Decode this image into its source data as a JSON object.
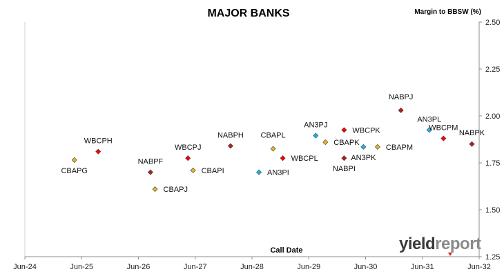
{
  "chart_data": {
    "type": "scatter",
    "title": "MAJOR BANKS",
    "ylabel": "Margin to BBSW (%)",
    "xlabel": "Call Date",
    "x_ticks": [
      "Jun-24",
      "Jun-25",
      "Jun-26",
      "Jun-27",
      "Jun-28",
      "Jun-29",
      "Jun-30",
      "Jun-31",
      "Jun-32"
    ],
    "y_ticks": [
      "1.25",
      "1.50",
      "1.75",
      "2.00",
      "2.25",
      "2.50"
    ],
    "xlim": [
      2024.458,
      2032.458
    ],
    "ylim": [
      1.25,
      2.5
    ],
    "grid": false,
    "series": [
      {
        "color": "#E6B41E",
        "points": [
          {
            "label": "CBAPG",
            "x": 2025.33,
            "y": 1.765
          },
          {
            "label": "CBAPJ",
            "x": 2026.75,
            "y": 1.61
          },
          {
            "label": "CBAPI",
            "x": 2027.42,
            "y": 1.71
          },
          {
            "label": "CBAPL",
            "x": 2028.83,
            "y": 1.825
          },
          {
            "label": "CBAPK",
            "x": 2029.75,
            "y": 1.86
          },
          {
            "label": "CBAPM",
            "x": 2030.67,
            "y": 1.835
          }
        ]
      },
      {
        "color": "#FF0000",
        "points": [
          {
            "label": "WBCPH",
            "x": 2025.75,
            "y": 1.81
          },
          {
            "label": "WBCPJ",
            "x": 2027.33,
            "y": 1.775
          },
          {
            "label": "WBCPL",
            "x": 2029.0,
            "y": 1.775
          },
          {
            "label": "WBCPK",
            "x": 2030.08,
            "y": 1.925
          },
          {
            "label": "WBCPM",
            "x": 2031.83,
            "y": 1.88
          }
        ]
      },
      {
        "color": "#B41E1E",
        "points": [
          {
            "label": "NABPF",
            "x": 2026.67,
            "y": 1.7
          },
          {
            "label": "NABPH",
            "x": 2028.08,
            "y": 1.84
          },
          {
            "label": "NABPI",
            "x": 2030.08,
            "y": 1.775
          },
          {
            "label": "NABPJ",
            "x": 2031.08,
            "y": 2.03
          },
          {
            "label": "NABPK",
            "x": 2032.33,
            "y": 1.85
          }
        ]
      },
      {
        "color": "#1EB4E6",
        "points": [
          {
            "label": "AN3PI",
            "x": 2028.58,
            "y": 1.7
          },
          {
            "label": "AN3PJ",
            "x": 2029.58,
            "y": 1.895
          },
          {
            "label": "AN3PK",
            "x": 2030.42,
            "y": 1.835
          },
          {
            "label": "AN3PL",
            "x": 2031.58,
            "y": 1.925
          }
        ]
      }
    ]
  },
  "logo": {
    "text_a": "yield",
    "text_b": "report"
  }
}
